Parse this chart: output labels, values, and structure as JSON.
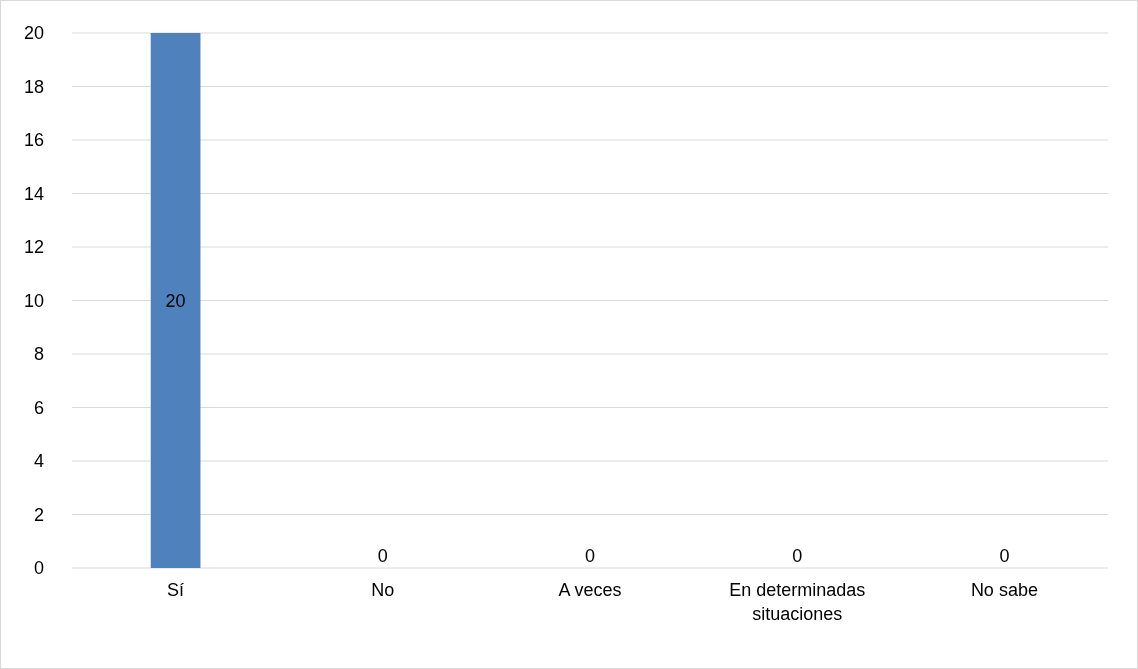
{
  "chart_data": {
    "type": "bar",
    "categories": [
      "Sí",
      "No",
      "A veces",
      "En determinadas situaciones",
      "No sabe"
    ],
    "values": [
      20,
      0,
      0,
      0,
      0
    ],
    "color": "#4f81bd",
    "ylim": [
      0,
      20
    ],
    "yticks": [
      0,
      2,
      4,
      6,
      8,
      10,
      12,
      14,
      16,
      18,
      20
    ],
    "grid": "y",
    "data_labels": true
  }
}
